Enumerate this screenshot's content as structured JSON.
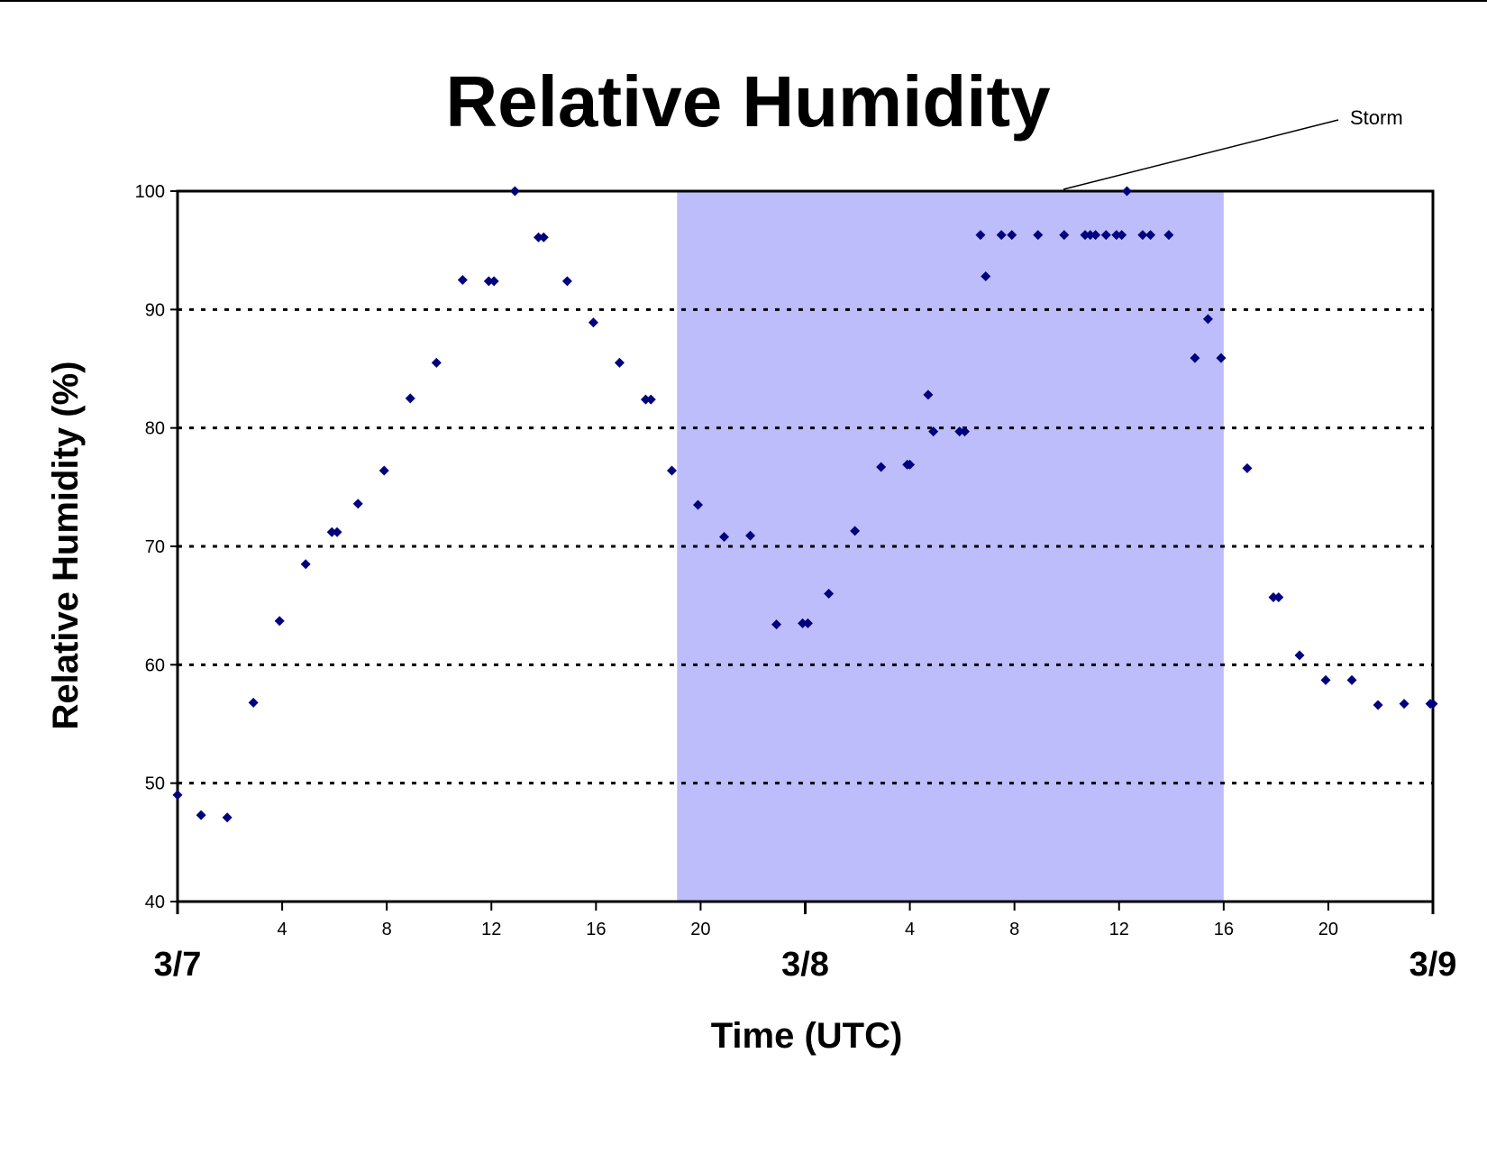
{
  "chart_data": {
    "type": "scatter",
    "title": "Relative Humidity",
    "xlabel": "Time (UTC)",
    "ylabel": "Relative Humidity (%)",
    "ylim": [
      40,
      100
    ],
    "yticks": [
      40,
      50,
      60,
      70,
      80,
      90,
      100
    ],
    "xlim_hours": [
      0,
      48
    ],
    "xtick_hours": [
      4,
      8,
      12,
      16,
      20,
      28,
      32,
      36,
      40,
      44
    ],
    "xtick_labels": [
      "4",
      "8",
      "12",
      "16",
      "20",
      "4",
      "8",
      "12",
      "16",
      "20"
    ],
    "day_labels": [
      {
        "hour": 0,
        "label": "3/7"
      },
      {
        "hour": 24,
        "label": "3/8"
      },
      {
        "hour": 48,
        "label": "3/9"
      }
    ],
    "grid": "horizontal dotted",
    "marker_color": "#00007f",
    "shaded_region": {
      "start_hour": 19.1,
      "end_hour": 40,
      "color": "#bdbdfb"
    },
    "annotation": {
      "text": "Storm"
    },
    "series": [
      {
        "points": [
          [
            0,
            49
          ],
          [
            0.9,
            47.3
          ],
          [
            1.9,
            47.1
          ],
          [
            2.9,
            56.8
          ],
          [
            3.9,
            63.7
          ],
          [
            4.9,
            68.5
          ],
          [
            5.9,
            71.2
          ],
          [
            6.1,
            71.2
          ],
          [
            6.9,
            73.6
          ],
          [
            7.9,
            76.4
          ],
          [
            8.9,
            82.5
          ],
          [
            9.9,
            85.5
          ],
          [
            10.9,
            92.5
          ],
          [
            11.9,
            92.4
          ],
          [
            12.1,
            92.4
          ],
          [
            12.9,
            100
          ],
          [
            13.8,
            96.1
          ],
          [
            14,
            96.1
          ],
          [
            14.9,
            92.4
          ],
          [
            15.9,
            88.9
          ],
          [
            16.9,
            85.5
          ],
          [
            17.9,
            82.4
          ],
          [
            18.1,
            82.4
          ],
          [
            18.9,
            76.4
          ],
          [
            19.9,
            73.5
          ],
          [
            20.9,
            70.8
          ],
          [
            21.9,
            70.9
          ],
          [
            22.9,
            63.4
          ],
          [
            23.9,
            63.5
          ],
          [
            24.1,
            63.5
          ],
          [
            24.9,
            66
          ],
          [
            25.9,
            71.3
          ],
          [
            26.9,
            76.7
          ],
          [
            27.9,
            76.9
          ],
          [
            28,
            76.9
          ],
          [
            28.7,
            82.8
          ],
          [
            28.9,
            79.7
          ],
          [
            29.9,
            79.7
          ],
          [
            30.1,
            79.7
          ],
          [
            30.7,
            96.3
          ],
          [
            30.9,
            92.8
          ],
          [
            31.5,
            96.3
          ],
          [
            31.9,
            96.3
          ],
          [
            32.9,
            96.3
          ],
          [
            33.9,
            96.3
          ],
          [
            34.7,
            96.3
          ],
          [
            34.9,
            96.3
          ],
          [
            35.1,
            96.3
          ],
          [
            35.5,
            96.3
          ],
          [
            35.9,
            96.3
          ],
          [
            36.1,
            96.3
          ],
          [
            36.3,
            100
          ],
          [
            36.9,
            96.3
          ],
          [
            37.2,
            96.3
          ],
          [
            37.9,
            96.3
          ],
          [
            38.9,
            85.9
          ],
          [
            39.4,
            89.2
          ],
          [
            39.9,
            85.9
          ],
          [
            40.9,
            76.6
          ],
          [
            41.9,
            65.7
          ],
          [
            42.1,
            65.7
          ],
          [
            42.9,
            60.8
          ],
          [
            43.9,
            58.7
          ],
          [
            44.9,
            58.7
          ],
          [
            45.9,
            56.6
          ],
          [
            46.9,
            56.7
          ],
          [
            47.9,
            56.7
          ],
          [
            48,
            56.7
          ]
        ]
      }
    ]
  }
}
